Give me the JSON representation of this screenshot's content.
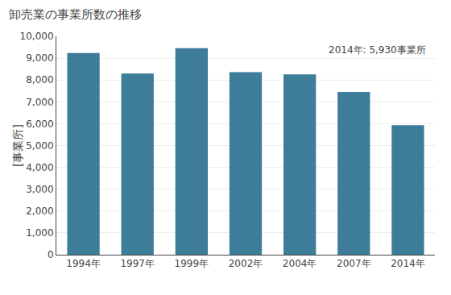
{
  "chart_data": {
    "type": "bar",
    "title": "卸売業の事業所数の推移",
    "ylabel": "[事業所]",
    "annotation": "2014年: 5,930事業所",
    "categories": [
      "1994年",
      "1997年",
      "1999年",
      "2002年",
      "2004年",
      "2007年",
      "2014年"
    ],
    "values": [
      9230,
      8290,
      9460,
      8360,
      8260,
      7450,
      5930
    ],
    "color": "#3d7d9a",
    "ylim": [
      0,
      10000
    ],
    "yticks": [
      0,
      {
        "value": 1000,
        "label": "1,000"
      },
      {
        "value": 2000,
        "label": "2,000"
      },
      {
        "value": 3000,
        "label": "3,000"
      },
      {
        "value": 4000,
        "label": "4,000"
      },
      {
        "value": 5000,
        "label": "5,000"
      },
      {
        "value": 6000,
        "label": "6,000"
      },
      {
        "value": 7000,
        "label": "7,000"
      },
      {
        "value": 8000,
        "label": "8,000"
      },
      {
        "value": 9000,
        "label": "9,000"
      },
      {
        "value": 10000,
        "label": "10,000"
      }
    ],
    "grid": true
  }
}
